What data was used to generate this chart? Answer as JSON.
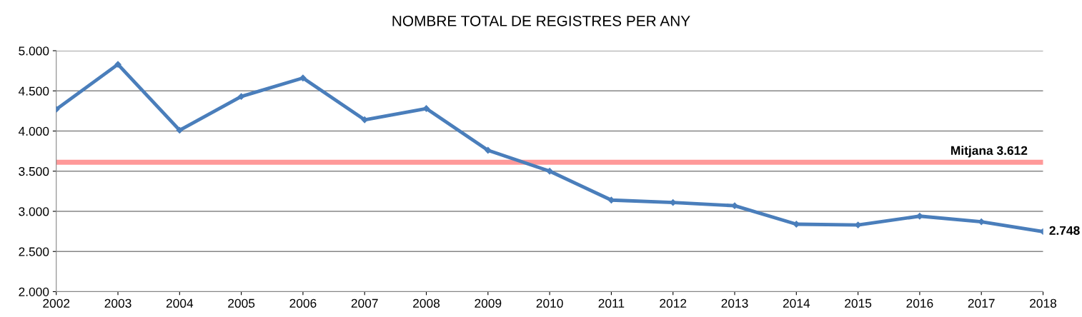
{
  "chart_data": {
    "type": "line",
    "title": "NOMBRE TOTAL DE REGISTRES PER ANY",
    "x": [
      2002,
      2003,
      2004,
      2005,
      2006,
      2007,
      2008,
      2009,
      2010,
      2011,
      2012,
      2013,
      2014,
      2015,
      2016,
      2017,
      2018
    ],
    "series": [
      {
        "color": "#4a7ebb",
        "values": [
          4270,
          4830,
          4010,
          4430,
          4660,
          4140,
          4280,
          3760,
          3500,
          3140,
          3110,
          3070,
          2840,
          2830,
          2940,
          2870,
          2748
        ]
      }
    ],
    "xlim": [
      2002,
      2018
    ],
    "xticks": [
      2002,
      2003,
      2004,
      2005,
      2006,
      2007,
      2008,
      2009,
      2010,
      2011,
      2012,
      2013,
      2014,
      2015,
      2016,
      2017,
      2018
    ],
    "ylim": [
      2000,
      5000
    ],
    "yticks": [
      {
        "value": 2000,
        "label": "2.000"
      },
      {
        "value": 2500,
        "label": "2.500"
      },
      {
        "value": 3000,
        "label": "3.000"
      },
      {
        "value": 3500,
        "label": "3.500"
      },
      {
        "value": 4000,
        "label": "4.000"
      },
      {
        "value": 4500,
        "label": "4.500"
      },
      {
        "value": 5000,
        "label": "5.000"
      }
    ],
    "ref_lines": [
      {
        "axis": "y",
        "value": 3612,
        "label": "Mitjana 3.612",
        "color": "#ff9999",
        "line_style": "solid"
      }
    ],
    "annotations": [
      {
        "text": "2.748",
        "x": 2018,
        "y": 2748
      }
    ],
    "grid": "y",
    "legend": false,
    "marker": "diamond",
    "line_style": "solid"
  }
}
